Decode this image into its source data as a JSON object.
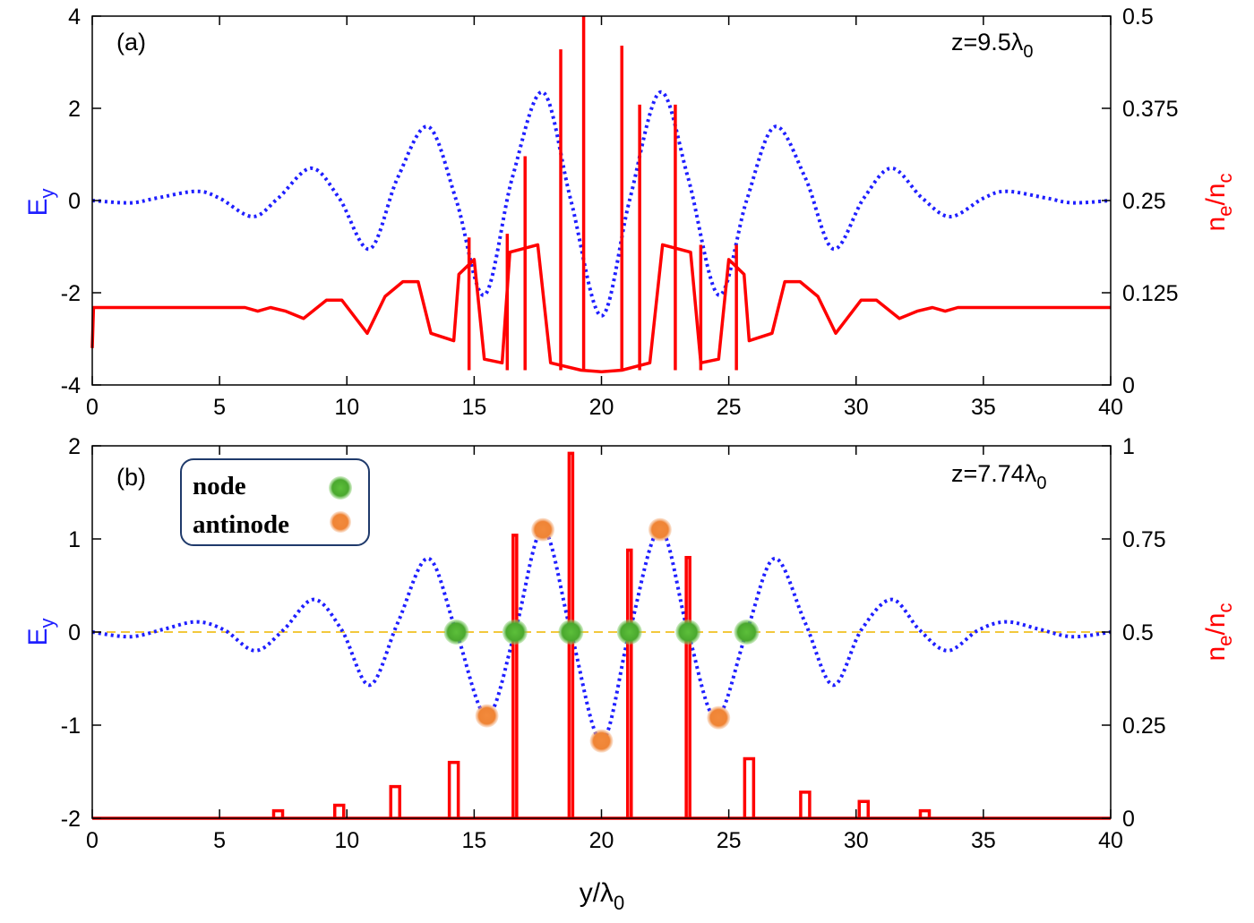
{
  "chart_data": [
    {
      "type": "line",
      "panel_label": "(a)",
      "annotation": "z=9.5λ0",
      "annotation_main": "z=9.5",
      "annotation_lambda": "λ",
      "annotation_sub": "0",
      "xlabel": "",
      "xlim": [
        0,
        40
      ],
      "xticks": [
        "0",
        "5",
        "10",
        "15",
        "20",
        "25",
        "30",
        "35",
        "40"
      ],
      "ylabel_left": "Ey",
      "ylabel_left_main": "E",
      "ylabel_left_sub": "y",
      "ylim_left": [
        -4,
        4
      ],
      "yticks_left": [
        "4",
        "2",
        "0",
        "-2",
        "-4"
      ],
      "ylabel_right": "ne/nc",
      "ylabel_right_parts": [
        "n",
        "e",
        "/n",
        "c"
      ],
      "ylim_right": [
        0,
        0.5
      ],
      "yticks_right": [
        "0.5",
        "0.375",
        "0.25",
        "0.125",
        "0"
      ],
      "grid": false,
      "series": [
        {
          "axis": "left",
          "color": "#1f1fff",
          "style": "dotted",
          "points": [
            [
              0,
              0
            ],
            [
              1.5,
              -0.05
            ],
            [
              2.5,
              0.05
            ],
            [
              4.1,
              0.2
            ],
            [
              5,
              0.05
            ],
            [
              6.3,
              -0.35
            ],
            [
              7.3,
              0.05
            ],
            [
              8.6,
              0.7
            ],
            [
              9.7,
              0.05
            ],
            [
              10.9,
              -1.05
            ],
            [
              12,
              0.5
            ],
            [
              13.2,
              1.6
            ],
            [
              14.3,
              0
            ],
            [
              15.4,
              -2.05
            ],
            [
              16.5,
              0.5
            ],
            [
              17.7,
              2.35
            ],
            [
              18.8,
              0
            ],
            [
              20,
              -2.5
            ],
            [
              21.1,
              0
            ],
            [
              22.3,
              2.35
            ],
            [
              23.4,
              0.5
            ],
            [
              24.6,
              -2.05
            ],
            [
              25.7,
              0
            ],
            [
              26.8,
              1.6
            ],
            [
              28,
              0.5
            ],
            [
              29.1,
              -1.05
            ],
            [
              30.3,
              0.05
            ],
            [
              31.4,
              0.7
            ],
            [
              32.6,
              0.05
            ],
            [
              33.7,
              -0.35
            ],
            [
              35,
              0.05
            ],
            [
              35.9,
              0.2
            ],
            [
              37.5,
              0.05
            ],
            [
              38.5,
              -0.05
            ],
            [
              40,
              0
            ]
          ]
        },
        {
          "axis": "right",
          "color": "#ff0000",
          "style": "solid",
          "points": [
            [
              0,
              0.05
            ],
            [
              0.05,
              0.105
            ],
            [
              6,
              0.105
            ],
            [
              6.5,
              0.1
            ],
            [
              7,
              0.105
            ],
            [
              7.6,
              0.1
            ],
            [
              8.3,
              0.09
            ],
            [
              9.2,
              0.115
            ],
            [
              9.8,
              0.115
            ],
            [
              10.8,
              0.07
            ],
            [
              11.5,
              0.12
            ],
            [
              12.2,
              0.14
            ],
            [
              12.8,
              0.14
            ],
            [
              13.3,
              0.07
            ],
            [
              14.2,
              0.06
            ],
            [
              14.4,
              0.15
            ],
            [
              15,
              0.17
            ],
            [
              15.4,
              0.035
            ],
            [
              16.1,
              0.03
            ],
            [
              16.4,
              0.18
            ],
            [
              17.5,
              0.19
            ],
            [
              18.0,
              0.03
            ],
            [
              19.2,
              0.02
            ],
            [
              20,
              0.018
            ],
            [
              20.8,
              0.02
            ],
            [
              21.9,
              0.03
            ],
            [
              22.4,
              0.19
            ],
            [
              23.5,
              0.18
            ],
            [
              23.9,
              0.03
            ],
            [
              24.6,
              0.035
            ],
            [
              25,
              0.17
            ],
            [
              25.6,
              0.15
            ],
            [
              25.8,
              0.06
            ],
            [
              26.7,
              0.07
            ],
            [
              27.2,
              0.14
            ],
            [
              27.8,
              0.14
            ],
            [
              28.5,
              0.12
            ],
            [
              29.2,
              0.07
            ],
            [
              30.2,
              0.115
            ],
            [
              30.8,
              0.115
            ],
            [
              31.7,
              0.09
            ],
            [
              32.4,
              0.1
            ],
            [
              33,
              0.105
            ],
            [
              33.5,
              0.1
            ],
            [
              34,
              0.105
            ],
            [
              40,
              0.105
            ]
          ],
          "spikes": [
            [
              14.8,
              0.2
            ],
            [
              16.3,
              0.205
            ],
            [
              17.0,
              0.31
            ],
            [
              18.4,
              0.455
            ],
            [
              19.3,
              0.5
            ],
            [
              20.8,
              0.46
            ],
            [
              21.5,
              0.38
            ],
            [
              22.9,
              0.38
            ],
            [
              23.9,
              0.19
            ],
            [
              25.3,
              0.19
            ]
          ]
        }
      ]
    },
    {
      "type": "line",
      "panel_label": "(b)",
      "annotation": "z=7.74λ0",
      "annotation_main": "z=7.74",
      "annotation_lambda": "λ",
      "annotation_sub": "0",
      "xlabel": "y/λ0",
      "xlabel_main": "y/λ",
      "xlabel_sub": "0",
      "xlim": [
        0,
        40
      ],
      "xticks": [
        "0",
        "5",
        "10",
        "15",
        "20",
        "25",
        "30",
        "35",
        "40"
      ],
      "ylabel_left": "Ey",
      "ylabel_left_main": "E",
      "ylabel_left_sub": "y",
      "ylim_left": [
        -2,
        2
      ],
      "yticks_left": [
        "2",
        "1",
        "0",
        "-1",
        "-2"
      ],
      "ylabel_right": "ne/nc",
      "ylabel_right_parts": [
        "n",
        "e",
        "/n",
        "c"
      ],
      "ylim_right": [
        0,
        1
      ],
      "yticks_right": [
        "1",
        "0.75",
        "0.5",
        "0.25",
        "0"
      ],
      "grid": false,
      "legend": {
        "placement": "top-left",
        "entries": [
          {
            "label": "node",
            "color": "#2e9e2e"
          },
          {
            "label": "antinode",
            "color": "#f08020"
          }
        ]
      },
      "reference_line": {
        "y": 0,
        "color": "#f0c020",
        "style": "dashed"
      },
      "series": [
        {
          "axis": "left",
          "color": "#1f1fff",
          "style": "dotted",
          "points": [
            [
              0,
              0
            ],
            [
              1.5,
              -0.05
            ],
            [
              2.8,
              0.03
            ],
            [
              4.1,
              0.11
            ],
            [
              5.2,
              0.02
            ],
            [
              6.4,
              -0.2
            ],
            [
              7.5,
              0.02
            ],
            [
              8.7,
              0.35
            ],
            [
              9.8,
              0.02
            ],
            [
              10.9,
              -0.57
            ],
            [
              12,
              0.1
            ],
            [
              13.2,
              0.79
            ],
            [
              14.3,
              0
            ],
            [
              15.5,
              -0.9
            ],
            [
              16.6,
              0
            ],
            [
              17.7,
              1.1
            ],
            [
              18.8,
              0
            ],
            [
              20,
              -1.17
            ],
            [
              21.1,
              0
            ],
            [
              22.3,
              1.1
            ],
            [
              23.4,
              0
            ],
            [
              24.5,
              -0.92
            ],
            [
              25.7,
              0
            ],
            [
              26.8,
              0.79
            ],
            [
              28,
              0.1
            ],
            [
              29.1,
              -0.57
            ],
            [
              30.2,
              0.02
            ],
            [
              31.4,
              0.35
            ],
            [
              32.5,
              0.02
            ],
            [
              33.6,
              -0.2
            ],
            [
              34.8,
              0.02
            ],
            [
              35.9,
              0.11
            ],
            [
              37.2,
              0.03
            ],
            [
              38.5,
              -0.05
            ],
            [
              40,
              0
            ]
          ]
        },
        {
          "axis": "right",
          "color": "#ff0000",
          "style": "solid",
          "spikes": [
            [
              7.3,
              0.02
            ],
            [
              9.7,
              0.035
            ],
            [
              11.9,
              0.085
            ],
            [
              14.2,
              0.15
            ],
            [
              16.6,
              0.76
            ],
            [
              18.8,
              0.98
            ],
            [
              21.1,
              0.72
            ],
            [
              23.4,
              0.7
            ],
            [
              25.8,
              0.16
            ],
            [
              28.0,
              0.07
            ],
            [
              30.3,
              0.045
            ],
            [
              32.7,
              0.02
            ]
          ]
        }
      ],
      "markers": {
        "node": [
          [
            14.3,
            0
          ],
          [
            16.6,
            0
          ],
          [
            18.8,
            0
          ],
          [
            21.1,
            0
          ],
          [
            23.4,
            0
          ],
          [
            25.7,
            0
          ]
        ],
        "antinode": [
          [
            15.5,
            -0.9
          ],
          [
            17.7,
            1.1
          ],
          [
            20,
            -1.17
          ],
          [
            22.3,
            1.1
          ],
          [
            24.6,
            -0.92
          ]
        ]
      }
    }
  ]
}
